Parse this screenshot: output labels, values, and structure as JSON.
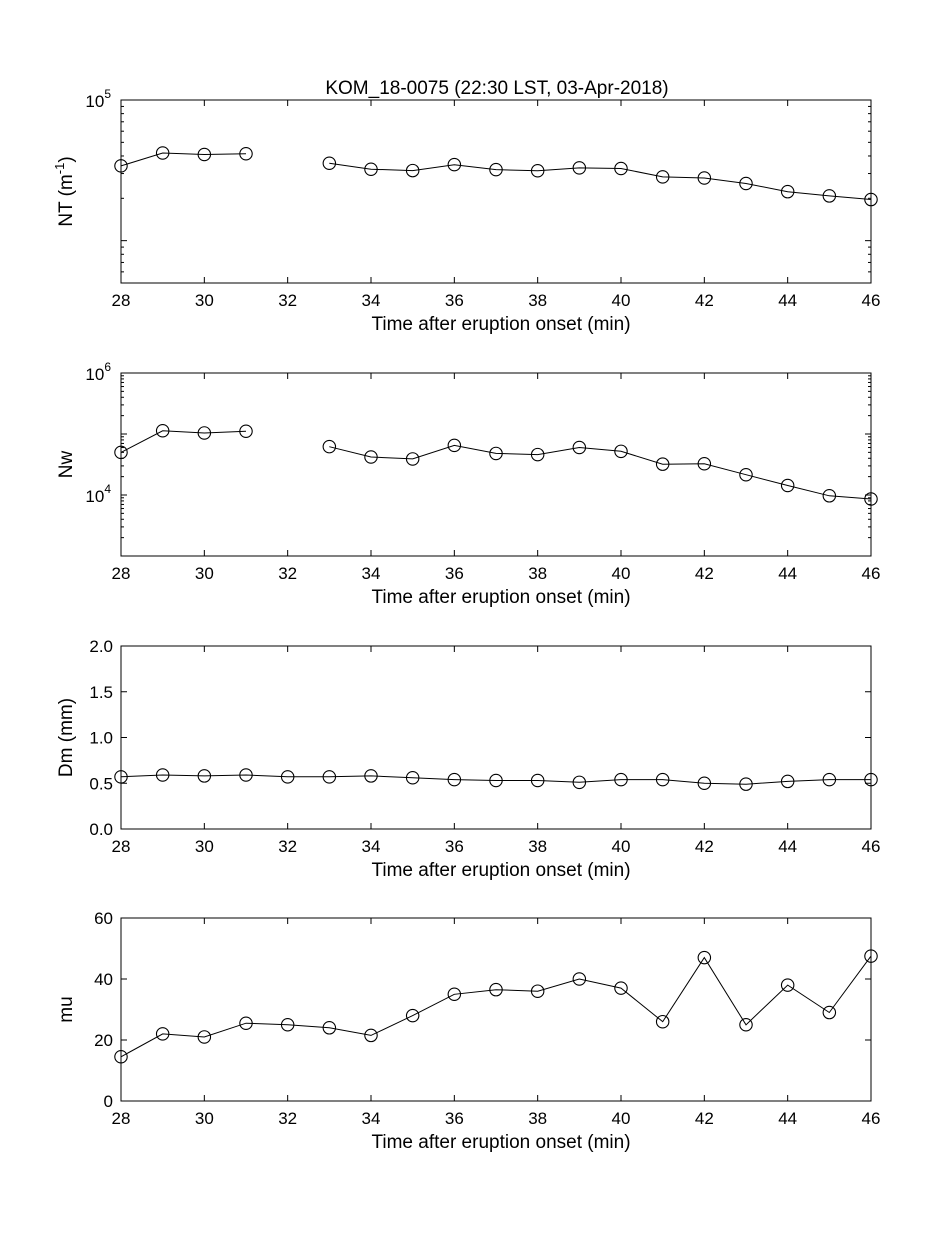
{
  "figure": {
    "title": "KOM_18-0075 (22:30 LST, 03-Apr-2018)"
  },
  "chart_data": [
    {
      "type": "line",
      "xlabel": "Time after eruption onset (min)",
      "ylabel": "NT (m^-1)",
      "xlim": [
        28,
        46
      ],
      "x_ticks": [
        "28",
        "30",
        "32",
        "34",
        "36",
        "38",
        "40",
        "42",
        "44",
        "46"
      ],
      "y_scale": "log",
      "ylim": [
        5000,
        100000
      ],
      "y_ticks": [
        {
          "value": 100000,
          "base": "10",
          "exp": "5"
        }
      ],
      "grid": false,
      "series": [
        {
          "marker": "open-circle",
          "points": [
            {
              "x": 28,
              "y": 34000
            },
            {
              "x": 29,
              "y": 42000
            },
            {
              "x": 30,
              "y": 41000
            },
            {
              "x": 31,
              "y": 41500
            },
            {
              "x": 32,
              "y": null
            },
            {
              "x": 33,
              "y": 35500
            },
            {
              "x": 34,
              "y": 32200
            },
            {
              "x": 35,
              "y": 31500
            },
            {
              "x": 36,
              "y": 34700
            },
            {
              "x": 37,
              "y": 32000
            },
            {
              "x": 38,
              "y": 31400
            },
            {
              "x": 39,
              "y": 32900
            },
            {
              "x": 40,
              "y": 32600
            },
            {
              "x": 41,
              "y": 28400
            },
            {
              "x": 42,
              "y": 27900
            },
            {
              "x": 43,
              "y": 25500
            },
            {
              "x": 44,
              "y": 22300
            },
            {
              "x": 45,
              "y": 20800
            },
            {
              "x": 46,
              "y": 19600
            }
          ]
        }
      ]
    },
    {
      "type": "line",
      "xlabel": "Time after eruption onset (min)",
      "ylabel": "Nw",
      "xlim": [
        28,
        46
      ],
      "x_ticks": [
        "28",
        "30",
        "32",
        "34",
        "36",
        "38",
        "40",
        "42",
        "44",
        "46"
      ],
      "y_scale": "log",
      "ylim": [
        1000,
        1000000
      ],
      "y_ticks": [
        {
          "value": 1000000,
          "base": "10",
          "exp": "6"
        },
        {
          "value": 10000,
          "base": "10",
          "exp": "4"
        }
      ],
      "grid": false,
      "series": [
        {
          "marker": "open-circle",
          "points": [
            {
              "x": 28,
              "y": 50000
            },
            {
              "x": 29,
              "y": 113000
            },
            {
              "x": 30,
              "y": 104000
            },
            {
              "x": 31,
              "y": 111000
            },
            {
              "x": 32,
              "y": null
            },
            {
              "x": 33,
              "y": 62000
            },
            {
              "x": 34,
              "y": 42000
            },
            {
              "x": 35,
              "y": 39000
            },
            {
              "x": 36,
              "y": 65000
            },
            {
              "x": 37,
              "y": 48000
            },
            {
              "x": 38,
              "y": 46000
            },
            {
              "x": 39,
              "y": 60000
            },
            {
              "x": 40,
              "y": 52000
            },
            {
              "x": 41,
              "y": 32000
            },
            {
              "x": 42,
              "y": 32500
            },
            {
              "x": 43,
              "y": 21500
            },
            {
              "x": 44,
              "y": 14300
            },
            {
              "x": 45,
              "y": 9700
            },
            {
              "x": 46,
              "y": 8600
            }
          ]
        }
      ]
    },
    {
      "type": "line",
      "xlabel": "Time after eruption onset (min)",
      "ylabel": "Dm (mm)",
      "xlim": [
        28,
        46
      ],
      "x_ticks": [
        "28",
        "30",
        "32",
        "34",
        "36",
        "38",
        "40",
        "42",
        "44",
        "46"
      ],
      "y_scale": "linear",
      "ylim": [
        0,
        2
      ],
      "y_ticks": [
        "0.0",
        "0.5",
        "1.0",
        "1.5",
        "2.0"
      ],
      "grid": false,
      "series": [
        {
          "marker": "open-circle",
          "points": [
            {
              "x": 28,
              "y": 0.57
            },
            {
              "x": 29,
              "y": 0.59
            },
            {
              "x": 30,
              "y": 0.58
            },
            {
              "x": 31,
              "y": 0.59
            },
            {
              "x": 32,
              "y": 0.57
            },
            {
              "x": 33,
              "y": 0.57
            },
            {
              "x": 34,
              "y": 0.58
            },
            {
              "x": 35,
              "y": 0.56
            },
            {
              "x": 36,
              "y": 0.54
            },
            {
              "x": 37,
              "y": 0.53
            },
            {
              "x": 38,
              "y": 0.53
            },
            {
              "x": 39,
              "y": 0.51
            },
            {
              "x": 40,
              "y": 0.54
            },
            {
              "x": 41,
              "y": 0.54
            },
            {
              "x": 42,
              "y": 0.5
            },
            {
              "x": 43,
              "y": 0.49
            },
            {
              "x": 44,
              "y": 0.52
            },
            {
              "x": 45,
              "y": 0.54
            },
            {
              "x": 46,
              "y": 0.54
            }
          ]
        }
      ]
    },
    {
      "type": "line",
      "xlabel": "Time after eruption onset (min)",
      "ylabel": "mu",
      "xlim": [
        28,
        46
      ],
      "x_ticks": [
        "28",
        "30",
        "32",
        "34",
        "36",
        "38",
        "40",
        "42",
        "44",
        "46"
      ],
      "y_scale": "linear",
      "ylim": [
        0,
        60
      ],
      "y_ticks": [
        "0",
        "20",
        "40",
        "60"
      ],
      "grid": false,
      "series": [
        {
          "marker": "open-circle",
          "points": [
            {
              "x": 28,
              "y": 14.5
            },
            {
              "x": 29,
              "y": 22
            },
            {
              "x": 30,
              "y": 21
            },
            {
              "x": 31,
              "y": 25.5
            },
            {
              "x": 32,
              "y": 25
            },
            {
              "x": 33,
              "y": 24
            },
            {
              "x": 34,
              "y": 21.5
            },
            {
              "x": 35,
              "y": 28
            },
            {
              "x": 36,
              "y": 35
            },
            {
              "x": 37,
              "y": 36.5
            },
            {
              "x": 38,
              "y": 36
            },
            {
              "x": 39,
              "y": 40
            },
            {
              "x": 40,
              "y": 37
            },
            {
              "x": 41,
              "y": 26
            },
            {
              "x": 42,
              "y": 47
            },
            {
              "x": 43,
              "y": 25
            },
            {
              "x": 44,
              "y": 38
            },
            {
              "x": 45,
              "y": 29
            },
            {
              "x": 46,
              "y": 47.5
            }
          ]
        }
      ]
    }
  ]
}
